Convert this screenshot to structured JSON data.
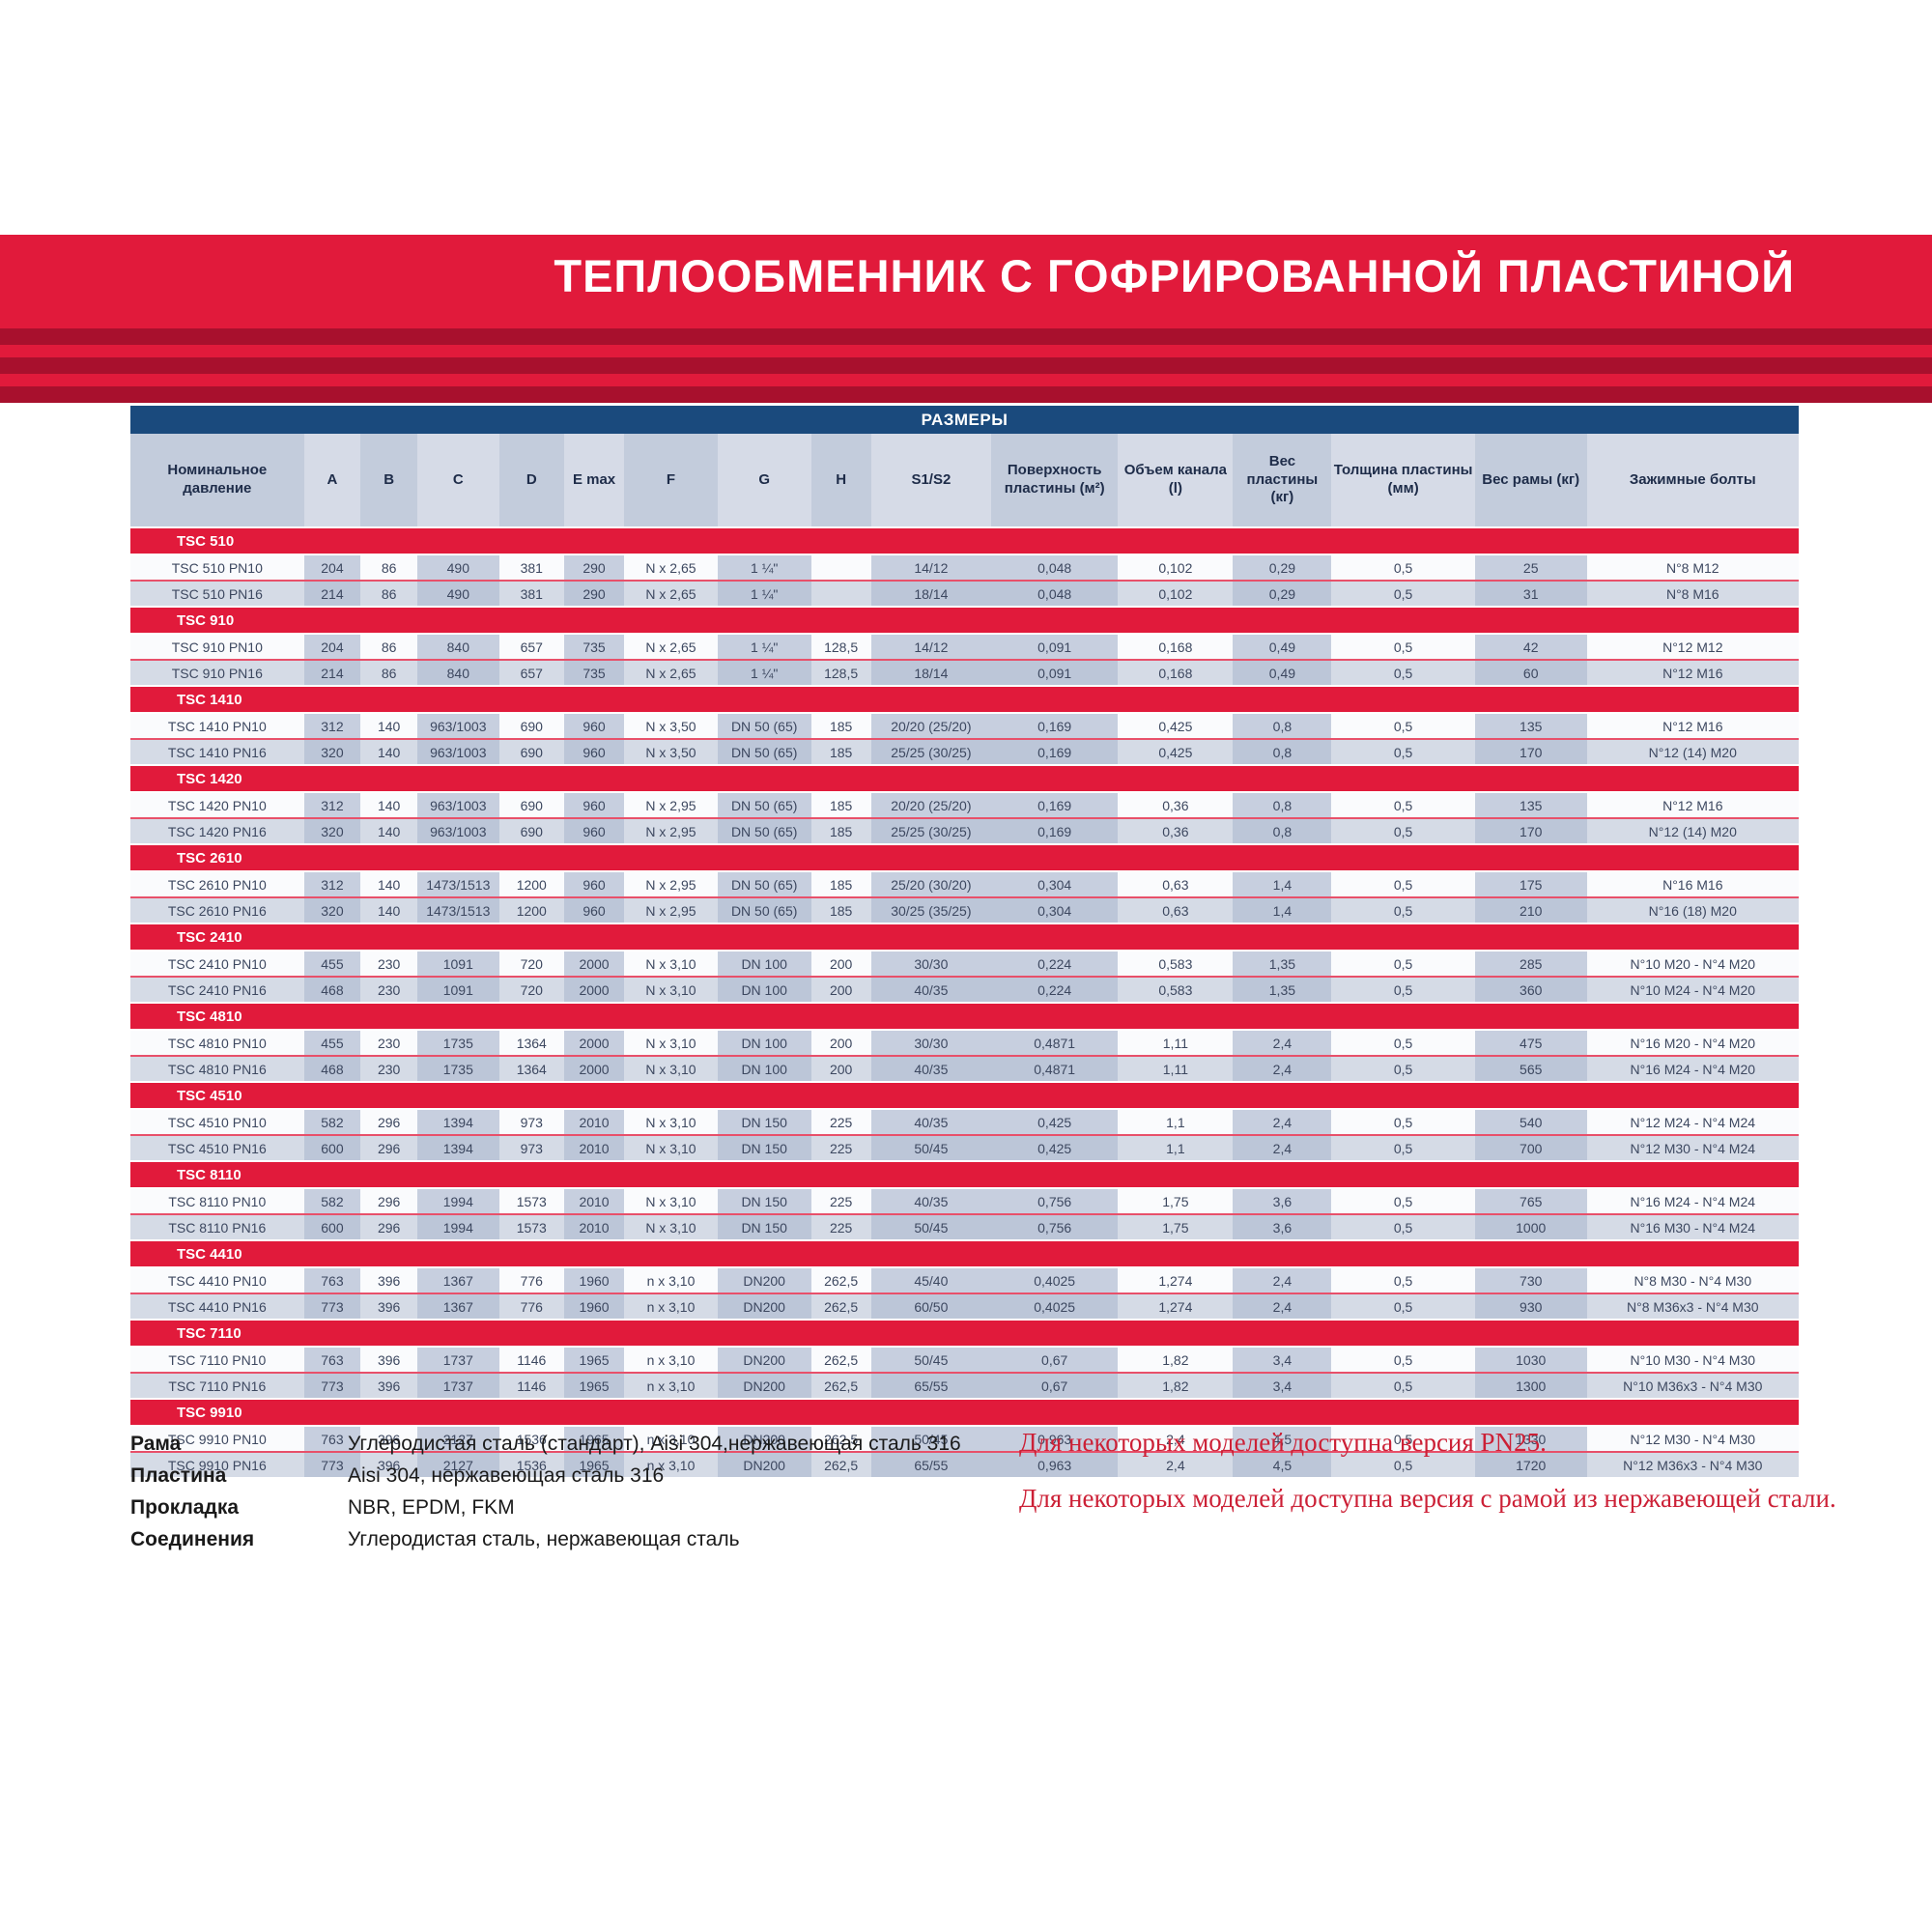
{
  "title": "ТЕПЛООБМЕННИК С ГОФРИРОВАННОЙ ПЛАСТИНОЙ",
  "table": {
    "caption": "РАЗМЕРЫ",
    "columns": [
      "Номинальное давление",
      "A",
      "B",
      "C",
      "D",
      "E max",
      "F",
      "G",
      "H",
      "S1/S2",
      "Поверхность пластины (м²)",
      "Объем канала (l)",
      "Вес пластины (кг)",
      "Толщина пластины (мм)",
      "Вес рамы (кг)",
      "Зажимные болты"
    ],
    "groups": [
      {
        "name": "TSC 510",
        "rows": [
          [
            "TSC 510 PN10",
            "204",
            "86",
            "490",
            "381",
            "290",
            "N x 2,65",
            "1 ¼\"",
            "",
            "14/12",
            "0,048",
            "0,102",
            "0,29",
            "0,5",
            "25",
            "N°8 M12"
          ],
          [
            "TSC 510 PN16",
            "214",
            "86",
            "490",
            "381",
            "290",
            "N x 2,65",
            "1 ¼\"",
            "",
            "18/14",
            "0,048",
            "0,102",
            "0,29",
            "0,5",
            "31",
            "N°8 M16"
          ]
        ]
      },
      {
        "name": "TSC 910",
        "rows": [
          [
            "TSC 910 PN10",
            "204",
            "86",
            "840",
            "657",
            "735",
            "N x 2,65",
            "1 ¼\"",
            "128,5",
            "14/12",
            "0,091",
            "0,168",
            "0,49",
            "0,5",
            "42",
            "N°12 M12"
          ],
          [
            "TSC 910 PN16",
            "214",
            "86",
            "840",
            "657",
            "735",
            "N x 2,65",
            "1 ¼\"",
            "128,5",
            "18/14",
            "0,091",
            "0,168",
            "0,49",
            "0,5",
            "60",
            "N°12 M16"
          ]
        ]
      },
      {
        "name": "TSC 1410",
        "rows": [
          [
            "TSC 1410 PN10",
            "312",
            "140",
            "963/1003",
            "690",
            "960",
            "N x 3,50",
            "DN 50 (65)",
            "185",
            "20/20 (25/20)",
            "0,169",
            "0,425",
            "0,8",
            "0,5",
            "135",
            "N°12 M16"
          ],
          [
            "TSC 1410 PN16",
            "320",
            "140",
            "963/1003",
            "690",
            "960",
            "N x 3,50",
            "DN 50 (65)",
            "185",
            "25/25 (30/25)",
            "0,169",
            "0,425",
            "0,8",
            "0,5",
            "170",
            "N°12 (14) M20"
          ]
        ]
      },
      {
        "name": "TSC 1420",
        "rows": [
          [
            "TSC 1420 PN10",
            "312",
            "140",
            "963/1003",
            "690",
            "960",
            "N x 2,95",
            "DN 50 (65)",
            "185",
            "20/20 (25/20)",
            "0,169",
            "0,36",
            "0,8",
            "0,5",
            "135",
            "N°12 M16"
          ],
          [
            "TSC 1420 PN16",
            "320",
            "140",
            "963/1003",
            "690",
            "960",
            "N x 2,95",
            "DN 50 (65)",
            "185",
            "25/25 (30/25)",
            "0,169",
            "0,36",
            "0,8",
            "0,5",
            "170",
            "N°12 (14) M20"
          ]
        ]
      },
      {
        "name": "TSC 2610",
        "rows": [
          [
            "TSC 2610 PN10",
            "312",
            "140",
            "1473/1513",
            "1200",
            "960",
            "N x 2,95",
            "DN 50 (65)",
            "185",
            "25/20 (30/20)",
            "0,304",
            "0,63",
            "1,4",
            "0,5",
            "175",
            "N°16 M16"
          ],
          [
            "TSC 2610 PN16",
            "320",
            "140",
            "1473/1513",
            "1200",
            "960",
            "N x 2,95",
            "DN 50 (65)",
            "185",
            "30/25 (35/25)",
            "0,304",
            "0,63",
            "1,4",
            "0,5",
            "210",
            "N°16 (18) M20"
          ]
        ]
      },
      {
        "name": "TSC 2410",
        "rows": [
          [
            "TSC 2410 PN10",
            "455",
            "230",
            "1091",
            "720",
            "2000",
            "N x 3,10",
            "DN 100",
            "200",
            "30/30",
            "0,224",
            "0,583",
            "1,35",
            "0,5",
            "285",
            "N°10 M20 - N°4 M20"
          ],
          [
            "TSC 2410 PN16",
            "468",
            "230",
            "1091",
            "720",
            "2000",
            "N x 3,10",
            "DN 100",
            "200",
            "40/35",
            "0,224",
            "0,583",
            "1,35",
            "0,5",
            "360",
            "N°10 M24 - N°4 M20"
          ]
        ]
      },
      {
        "name": "TSC 4810",
        "rows": [
          [
            "TSC 4810 PN10",
            "455",
            "230",
            "1735",
            "1364",
            "2000",
            "N x 3,10",
            "DN 100",
            "200",
            "30/30",
            "0,4871",
            "1,11",
            "2,4",
            "0,5",
            "475",
            "N°16 M20 - N°4 M20"
          ],
          [
            "TSC 4810 PN16",
            "468",
            "230",
            "1735",
            "1364",
            "2000",
            "N x 3,10",
            "DN 100",
            "200",
            "40/35",
            "0,4871",
            "1,11",
            "2,4",
            "0,5",
            "565",
            "N°16 M24 - N°4 M20"
          ]
        ]
      },
      {
        "name": "TSC 4510",
        "rows": [
          [
            "TSC 4510 PN10",
            "582",
            "296",
            "1394",
            "973",
            "2010",
            "N x 3,10",
            "DN 150",
            "225",
            "40/35",
            "0,425",
            "1,1",
            "2,4",
            "0,5",
            "540",
            "N°12 M24 - N°4 M24"
          ],
          [
            "TSC 4510 PN16",
            "600",
            "296",
            "1394",
            "973",
            "2010",
            "N x 3,10",
            "DN 150",
            "225",
            "50/45",
            "0,425",
            "1,1",
            "2,4",
            "0,5",
            "700",
            "N°12 M30 - N°4 M24"
          ]
        ]
      },
      {
        "name": "TSC 8110",
        "rows": [
          [
            "TSC 8110 PN10",
            "582",
            "296",
            "1994",
            "1573",
            "2010",
            "N x 3,10",
            "DN 150",
            "225",
            "40/35",
            "0,756",
            "1,75",
            "3,6",
            "0,5",
            "765",
            "N°16 M24 - N°4 M24"
          ],
          [
            "TSC 8110 PN16",
            "600",
            "296",
            "1994",
            "1573",
            "2010",
            "N x 3,10",
            "DN 150",
            "225",
            "50/45",
            "0,756",
            "1,75",
            "3,6",
            "0,5",
            "1000",
            "N°16 M30 - N°4 M24"
          ]
        ]
      },
      {
        "name": "TSC 4410",
        "rows": [
          [
            "TSC 4410 PN10",
            "763",
            "396",
            "1367",
            "776",
            "1960",
            "n x 3,10",
            "DN200",
            "262,5",
            "45/40",
            "0,4025",
            "1,274",
            "2,4",
            "0,5",
            "730",
            "N°8 M30 - N°4 M30"
          ],
          [
            "TSC 4410 PN16",
            "773",
            "396",
            "1367",
            "776",
            "1960",
            "n x 3,10",
            "DN200",
            "262,5",
            "60/50",
            "0,4025",
            "1,274",
            "2,4",
            "0,5",
            "930",
            "N°8 M36x3 - N°4 M30"
          ]
        ]
      },
      {
        "name": "TSC 7110",
        "rows": [
          [
            "TSC 7110 PN10",
            "763",
            "396",
            "1737",
            "1146",
            "1965",
            "n x 3,10",
            "DN200",
            "262,5",
            "50/45",
            "0,67",
            "1,82",
            "3,4",
            "0,5",
            "1030",
            "N°10 M30 - N°4 M30"
          ],
          [
            "TSC 7110 PN16",
            "773",
            "396",
            "1737",
            "1146",
            "1965",
            "n x 3,10",
            "DN200",
            "262,5",
            "65/55",
            "0,67",
            "1,82",
            "3,4",
            "0,5",
            "1300",
            "N°10 M36x3 - N°4 M30"
          ]
        ]
      },
      {
        "name": "TSC 9910",
        "rows": [
          [
            "TSC 9910 PN10",
            "763",
            "396",
            "2127",
            "1536",
            "1965",
            "n x 3,10",
            "DN200",
            "262,5",
            "50/45",
            "0,963",
            "2,4",
            "4,5",
            "0,5",
            "1330",
            "N°12 M30 - N°4 M30"
          ],
          [
            "TSC 9910 PN16",
            "773",
            "396",
            "2127",
            "1536",
            "1965",
            "n x 3,10",
            "DN200",
            "262,5",
            "65/55",
            "0,963",
            "2,4",
            "4,5",
            "0,5",
            "1720",
            "N°12 M36x3 - N°4 M30"
          ]
        ]
      }
    ]
  },
  "specs": [
    {
      "label": "Рама",
      "value": "Углеродистая сталь (стандарт), Aisi 304,нержавеющая сталь 316"
    },
    {
      "label": "Пластина",
      "value": "Aisi 304, нержавеющая сталь 316"
    },
    {
      "label": "Прокладка",
      "value": "NBR, EPDM, FKM"
    },
    {
      "label": "Соединения",
      "value": "Углеродистая сталь, нержавеющая сталь"
    }
  ],
  "notes": [
    "Для некоторых моделей доступна версия PN25.",
    "Для некоторых моделей доступна версия с рамой из нержавеющей стали."
  ],
  "colors": {
    "accent_red": "#e11a3b",
    "dark_red_stripe": "#a8102d",
    "navy_caption": "#1a4a7d",
    "note_red": "#cc2036"
  }
}
